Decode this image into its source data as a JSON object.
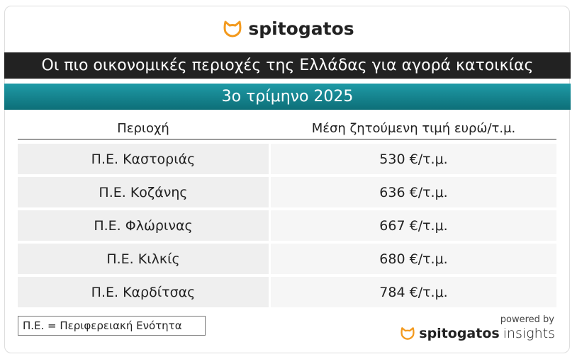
{
  "header": {
    "logo": "spitogatos",
    "title": "Οι πιο οικονομικές περιοχές της Ελλάδας για αγορά κατοικίας",
    "subtitle": "3ο τρίμηνο 2025"
  },
  "table": {
    "columns": [
      "Περιοχή",
      "Μέση ζητούμενη τιμή ευρώ/τ.μ."
    ],
    "rows": [
      [
        "Π.Ε. Καστοριάς",
        "530 €/τ.μ."
      ],
      [
        "Π.Ε. Κοζάνης",
        "636 €/τ.μ."
      ],
      [
        "Π.Ε. Φλώρινας",
        "667 €/τ.μ."
      ],
      [
        "Π.Ε. Κιλκίς",
        "680 €/τ.μ."
      ],
      [
        "Π.Ε. Καρδίτσας",
        "784 €/τ.μ."
      ]
    ]
  },
  "footer": {
    "note": "Π.Ε. = Περιφερειακή Ενότητα",
    "powered_by": "powered by",
    "brand": "spitogatos",
    "brand_suffix": "insights"
  }
}
